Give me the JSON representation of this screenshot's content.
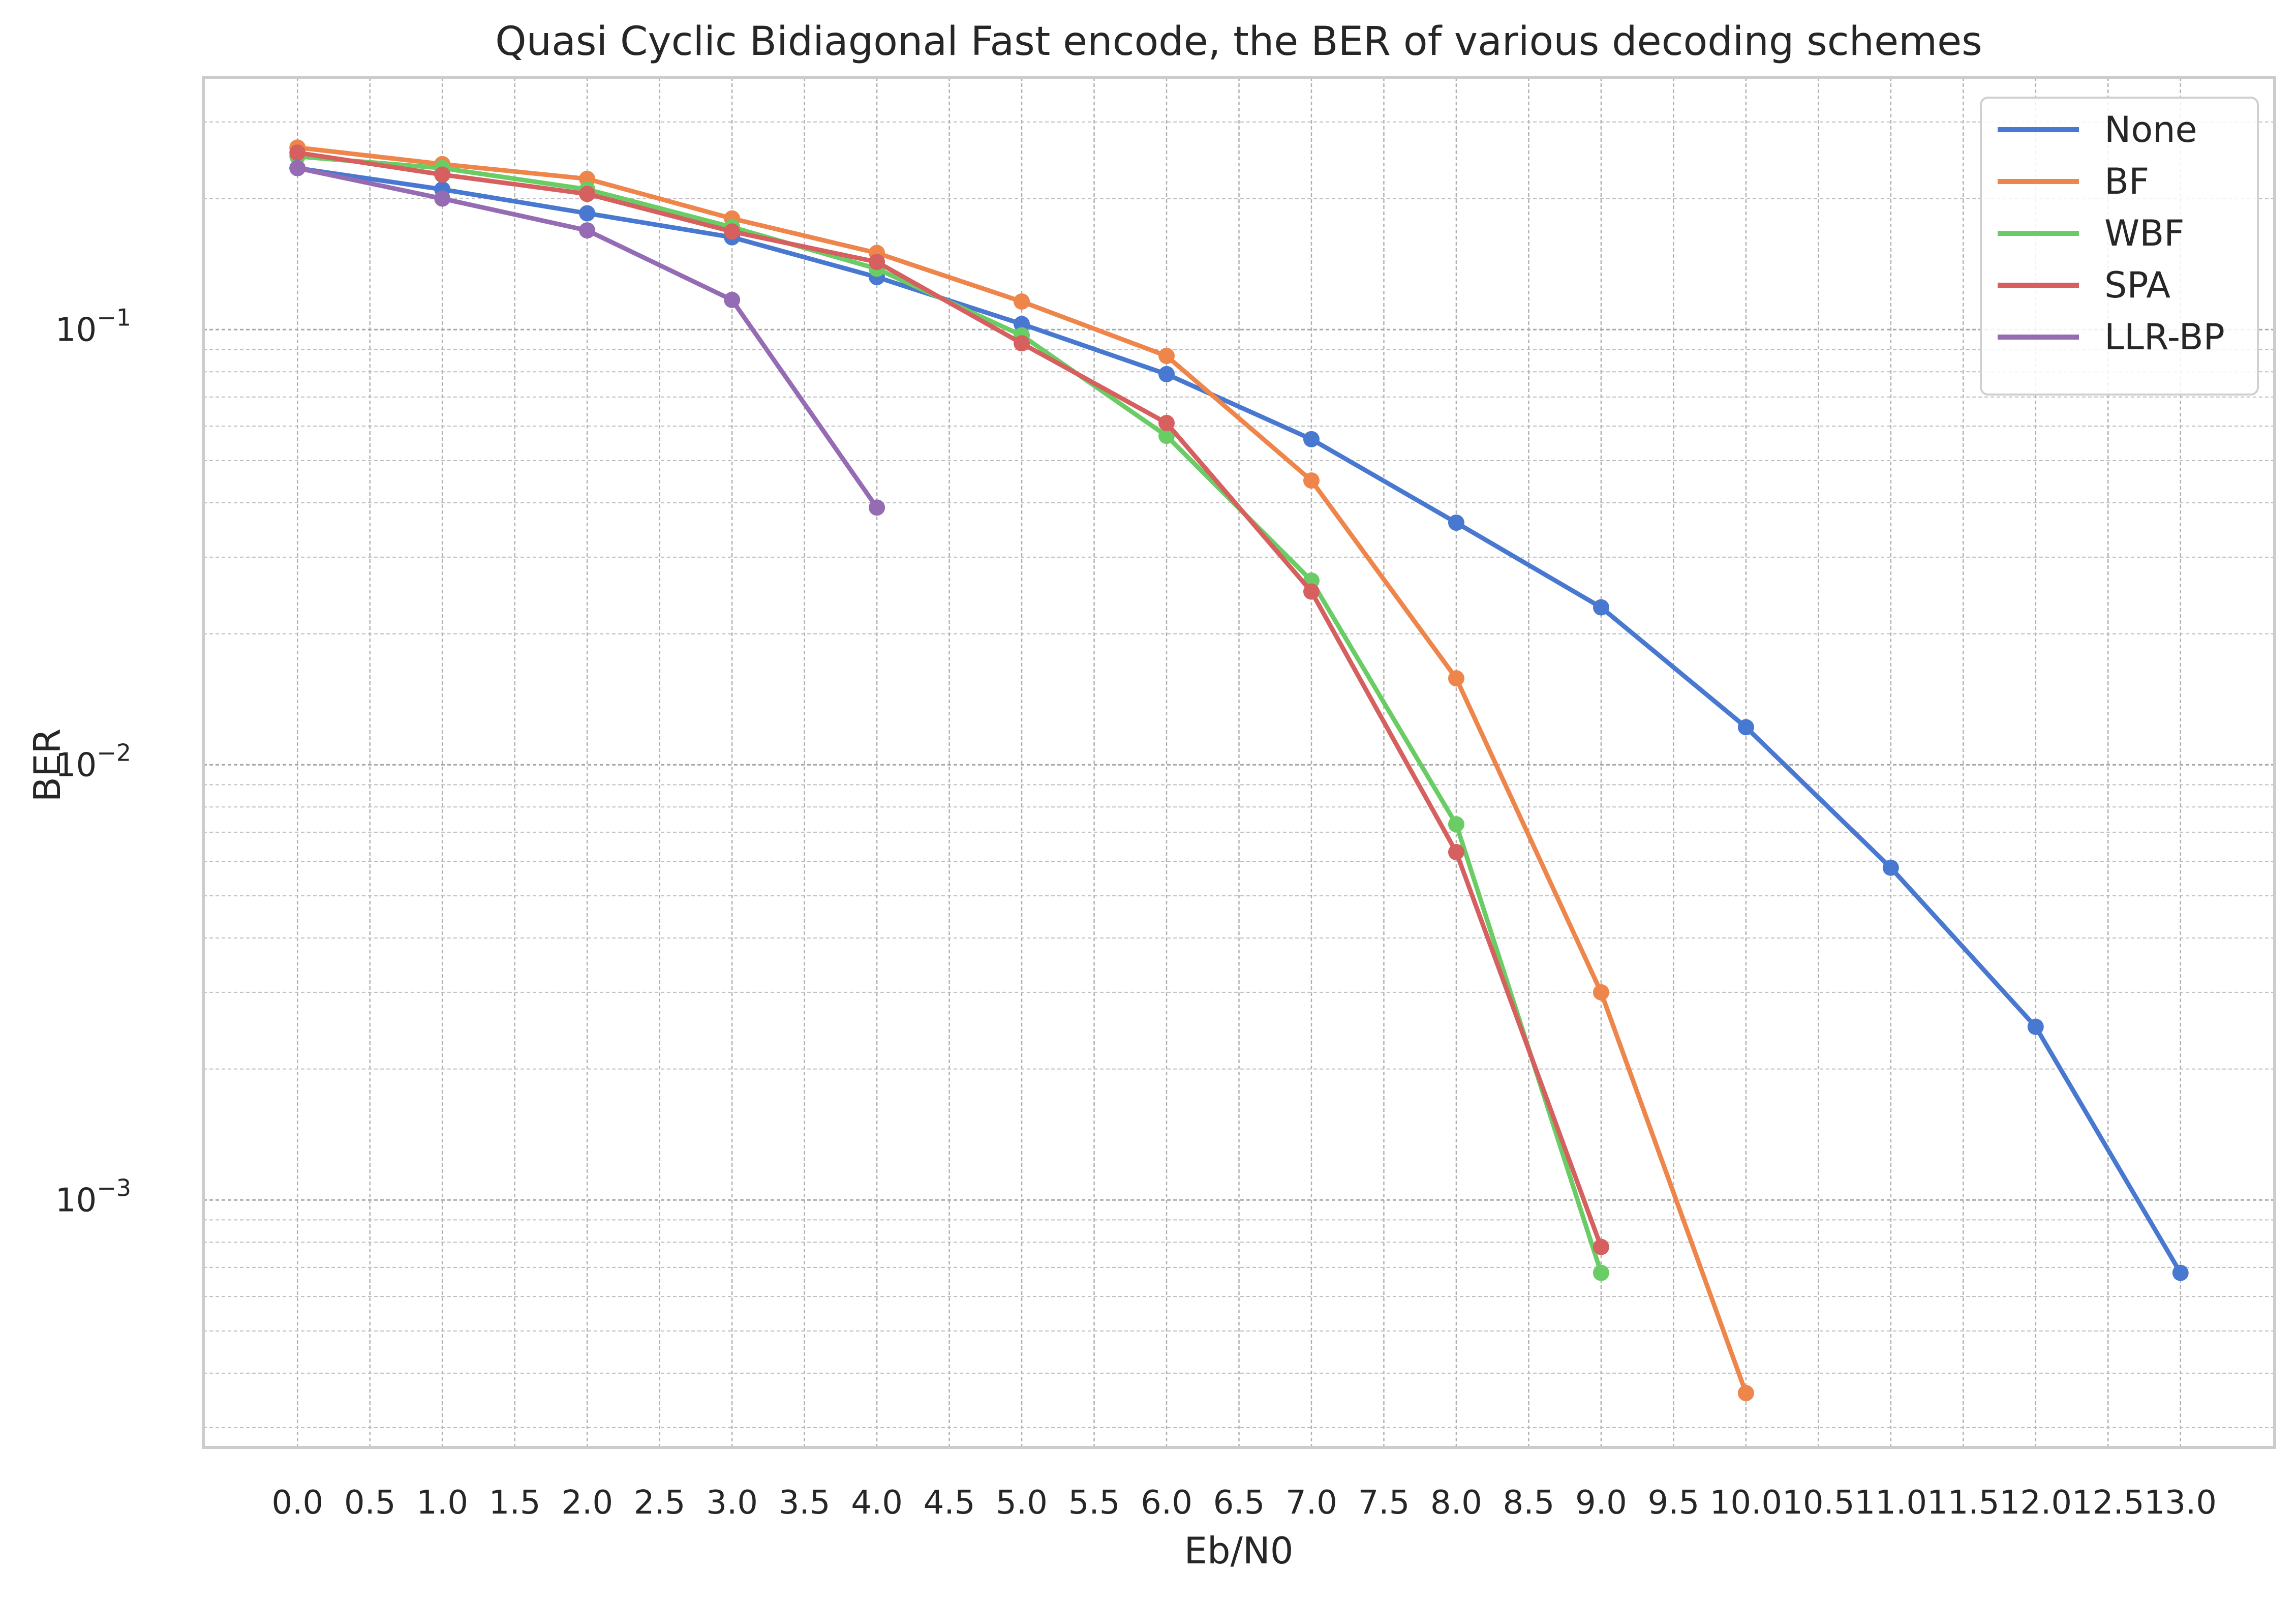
{
  "chart_data": {
    "type": "line",
    "title": "Quasi Cyclic Bidiagonal Fast encode, the BER of various decoding schemes",
    "xlabel": "Eb/N0",
    "ylabel": "BER",
    "yscale": "log",
    "xlim": [
      -0.65,
      13.65
    ],
    "ylim": [
      0.00027,
      0.38
    ],
    "x_ticks": [
      "0.0",
      "0.5",
      "1.0",
      "1.5",
      "2.0",
      "2.5",
      "3.0",
      "3.5",
      "4.0",
      "4.5",
      "5.0",
      "5.5",
      "6.0",
      "6.5",
      "7.0",
      "7.5",
      "8.0",
      "8.5",
      "9.0",
      "9.5",
      "10.0",
      "10.5",
      "11.0",
      "11.5",
      "12.0",
      "12.5",
      "13.0"
    ],
    "y_ticks": [
      {
        "base": "10",
        "exp": "−1"
      },
      {
        "base": "10",
        "exp": "−2"
      },
      {
        "base": "10",
        "exp": "−3"
      }
    ],
    "grid": true,
    "legend_position": "top-right",
    "series": [
      {
        "name": "None",
        "color": "#4878d0",
        "x": [
          0,
          1,
          2,
          3,
          4,
          5,
          6,
          7,
          8,
          9,
          10,
          11,
          12,
          13
        ],
        "y": [
          0.235,
          0.21,
          0.185,
          0.163,
          0.132,
          0.103,
          0.079,
          0.056,
          0.036,
          0.023,
          0.0122,
          0.0058,
          0.0025,
          0.00068
        ]
      },
      {
        "name": "BF",
        "color": "#ee854a",
        "x": [
          0,
          1,
          2,
          3,
          4,
          5,
          6,
          7,
          8,
          9,
          10
        ],
        "y": [
          0.262,
          0.24,
          0.222,
          0.18,
          0.15,
          0.116,
          0.087,
          0.045,
          0.0158,
          0.003,
          0.00036
        ]
      },
      {
        "name": "WBF",
        "color": "#6acc64",
        "x": [
          0,
          1,
          2,
          3,
          4,
          5,
          6,
          7,
          8,
          9
        ],
        "y": [
          0.25,
          0.235,
          0.21,
          0.172,
          0.138,
          0.097,
          0.057,
          0.0265,
          0.0073,
          0.00068
        ]
      },
      {
        "name": "SPA",
        "color": "#d65f5f",
        "x": [
          0,
          1,
          2,
          3,
          4,
          5,
          6,
          7,
          8,
          9
        ],
        "y": [
          0.255,
          0.227,
          0.205,
          0.168,
          0.143,
          0.093,
          0.061,
          0.025,
          0.0063,
          0.00078
        ]
      },
      {
        "name": "LLR-BP",
        "color": "#956cb4",
        "x": [
          0,
          1,
          2,
          3,
          4
        ],
        "y": [
          0.235,
          0.2,
          0.169,
          0.117,
          0.039
        ]
      }
    ]
  }
}
